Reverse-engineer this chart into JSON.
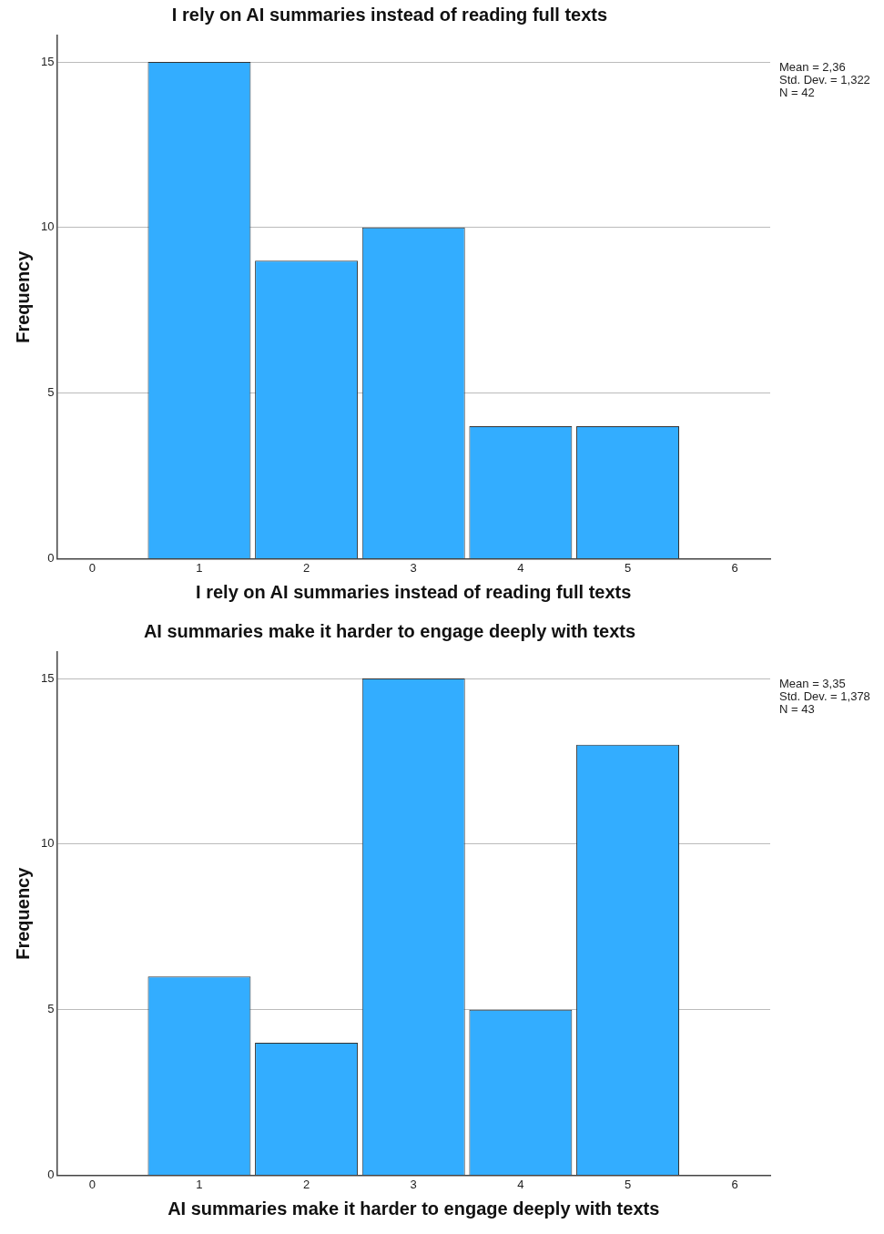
{
  "chart_data": [
    {
      "type": "histogram",
      "title": "I rely on AI summaries instead of reading full texts",
      "xlabel": "I rely on AI summaries instead of reading full texts",
      "ylabel": "Frequency",
      "bins": [
        0.5,
        1.5,
        2.5,
        3.5,
        4.5,
        5.5
      ],
      "values": [
        15,
        9,
        10,
        4,
        4
      ],
      "color": "#33adff",
      "xlim": [
        -0.33,
        6.33
      ],
      "xticks": [
        0,
        1,
        2,
        3,
        4,
        5,
        6
      ],
      "ylim": [
        0,
        15.8
      ],
      "yticks": [
        0,
        5,
        10,
        15
      ],
      "grid": "y",
      "annotations": [
        "Mean = 2,36",
        "Std. Dev. = 1,322",
        "N = 42"
      ]
    },
    {
      "type": "histogram",
      "title": "AI summaries make it harder to engage deeply with texts",
      "xlabel": "AI summaries make it harder to engage deeply with texts",
      "ylabel": "Frequency",
      "bins": [
        0.5,
        1.5,
        2.5,
        3.5,
        4.5,
        5.5
      ],
      "values": [
        6,
        4,
        15,
        5,
        13
      ],
      "color": "#33adff",
      "xlim": [
        -0.33,
        6.33
      ],
      "xticks": [
        0,
        1,
        2,
        3,
        4,
        5,
        6
      ],
      "ylim": [
        0,
        15.8
      ],
      "yticks": [
        0,
        5,
        10,
        15
      ],
      "grid": "y",
      "annotations": [
        "Mean = 3,35",
        "Std. Dev. = 1,378",
        "N = 43"
      ]
    }
  ]
}
